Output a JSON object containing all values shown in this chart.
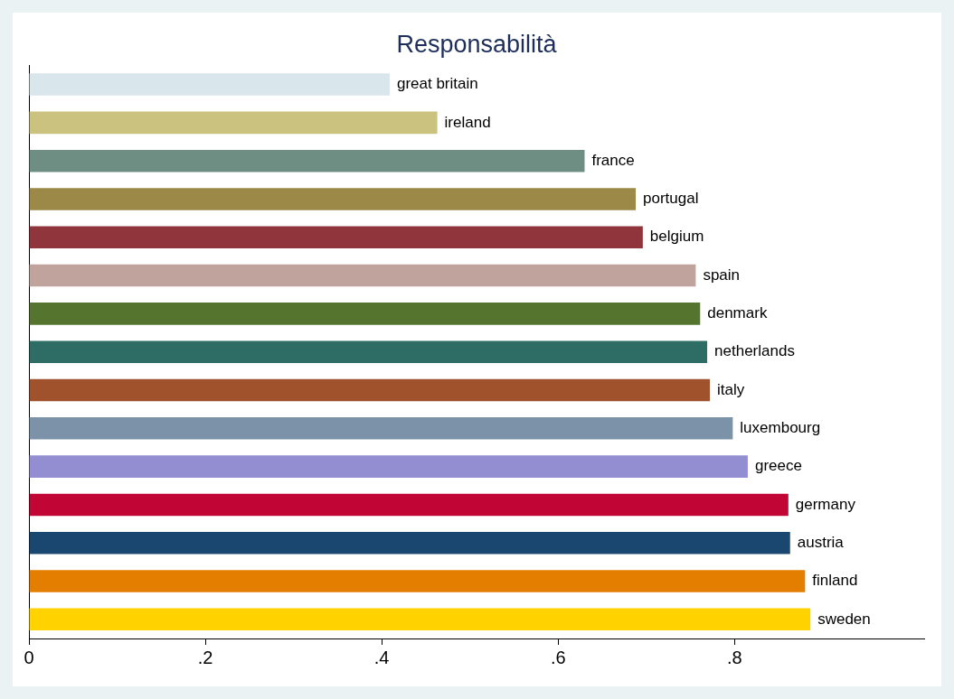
{
  "chart_data": {
    "type": "bar",
    "orientation": "horizontal",
    "title": "Responsabilità",
    "categories": [
      "great britain",
      "ireland",
      "france",
      "portugal",
      "belgium",
      "spain",
      "denmark",
      "netherlands",
      "italy",
      "luxembourg",
      "greece",
      "germany",
      "austria",
      "finland",
      "sweden"
    ],
    "values": [
      0.409,
      0.463,
      0.63,
      0.688,
      0.696,
      0.756,
      0.761,
      0.769,
      0.772,
      0.798,
      0.815,
      0.861,
      0.863,
      0.88,
      0.886
    ],
    "colors": [
      "#d9e6eb",
      "#cac27e",
      "#6e8e84",
      "#9c8847",
      "#90353b",
      "#c0a39c",
      "#55752f",
      "#2d6d66",
      "#a0522d",
      "#7b92a8",
      "#938dd2",
      "#c10534",
      "#1a476f",
      "#e37e00",
      "#ffd200"
    ],
    "xlim": [
      0,
      1.015
    ],
    "xticks": [
      0,
      {
        "value": 0.2,
        "label": ".2"
      },
      {
        "value": 0.4,
        "label": ".4"
      },
      {
        "value": 0.6,
        "label": ".6"
      },
      {
        "value": 0.8,
        "label": ".8"
      }
    ],
    "tick_labels": "x",
    "grid": false,
    "legend": false
  }
}
